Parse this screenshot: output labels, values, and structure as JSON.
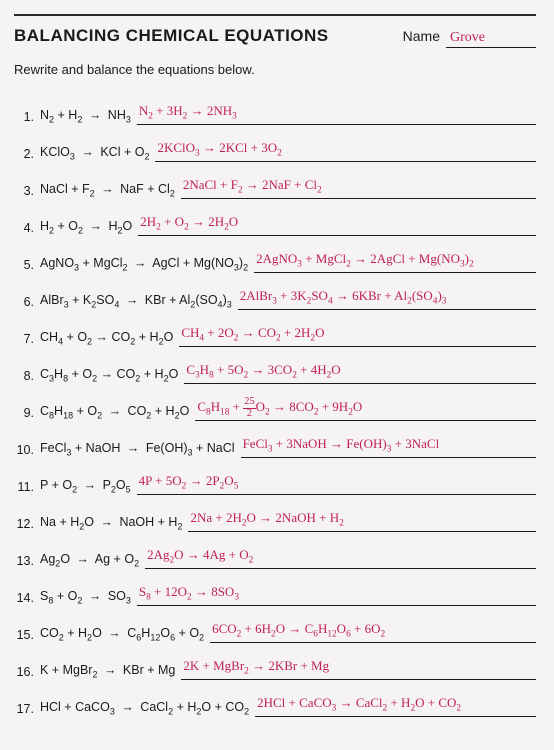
{
  "colors": {
    "paper_bg": "#f5f4f2",
    "print_text": "#1a1a1a",
    "handwriting": "#c0205a",
    "rule_line": "#1a1a1a"
  },
  "typography": {
    "title_fontsize": 17,
    "title_weight": 900,
    "body_fontsize": 12.5,
    "handwriting_font": "Comic Sans MS, cursive",
    "print_font": "Arial, Helvetica, sans-serif"
  },
  "header": {
    "title": "BALANCING CHEMICAL EQUATIONS",
    "name_label": "Name",
    "name_value": "Grove"
  },
  "instructions": "Rewrite and balance the equations below.",
  "problems": [
    {
      "n": "1.",
      "eq": "N<sub>2</sub> + H<sub>2</sub> <span class='arrow'>→</span> NH<sub>3</sub>",
      "ans": "N<sub>2</sub> + 3H<sub>2</sub> → 2NH<sub>3</sub>"
    },
    {
      "n": "2.",
      "eq": "KClO<sub>3</sub> <span class='arrow'>→</span> KCl + O<sub>2</sub>",
      "ans": "2KClO<sub>3</sub> → 2KCl + 3O<sub>2</sub>"
    },
    {
      "n": "3.",
      "eq": "NaCl + F<sub>2</sub> <span class='arrow'>→</span> NaF + Cl<sub>2</sub>",
      "ans": "2NaCl + F<sub>2</sub> → 2NaF + Cl<sub>2</sub>"
    },
    {
      "n": "4.",
      "eq": "H<sub>2</sub> + O<sub>2</sub> <span class='arrow'>→</span> H<sub>2</sub>O",
      "ans": "2H<sub>2</sub> + O<sub>2</sub> → 2H<sub>2</sub>O"
    },
    {
      "n": "5.",
      "eq": "AgNO<sub>3</sub> + MgCl<sub>2</sub> <span class='arrow'>→</span> AgCl + Mg(NO<sub>3</sub>)<sub>2</sub>",
      "ans": "2AgNO<sub>3</sub> + MgCl<sub>2</sub> → 2AgCl + Mg(NO<sub>3</sub>)<sub>2</sub>"
    },
    {
      "n": "6.",
      "eq": "AlBr<sub>3</sub> + K<sub>2</sub>SO<sub>4</sub> <span class='arrow'>→</span> KBr + Al<sub>2</sub>(SO<sub>4</sub>)<sub>3</sub>",
      "ans": "2AlBr<sub>3</sub> + 3K<sub>2</sub>SO<sub>4</sub> → 6KBr + Al<sub>2</sub>(SO<sub>4</sub>)<sub>3</sub>"
    },
    {
      "n": "7.",
      "eq": "CH<sub>4</sub> + O<sub>2</sub> → CO<sub>2</sub> + H<sub>2</sub>O",
      "ans": "CH<sub>4</sub> + 2O<sub>2</sub> → CO<sub>2</sub> + 2H<sub>2</sub>O"
    },
    {
      "n": "8.",
      "eq": "C<sub>3</sub>H<sub>8</sub> + O<sub>2</sub> → CO<sub>2</sub> + H<sub>2</sub>O",
      "ans": "C<sub>3</sub>H<sub>8</sub> + 5O<sub>2</sub> → 3CO<sub>2</sub> + 4H<sub>2</sub>O"
    },
    {
      "n": "9.",
      "eq": "C<sub>8</sub>H<sub>18</sub> + O<sub>2</sub> <span class='arrow'>→</span> CO<sub>2</sub> + H<sub>2</sub>O",
      "ans": "C<sub>8</sub>H<sub>18</sub> + <span class='frac'><span class='t'>25</span><span class='b'>2</span></span>O<sub>2</sub> → 8CO<sub>2</sub> + 9H<sub>2</sub>O"
    },
    {
      "n": "10.",
      "eq": "FeCl<sub>3</sub> + NaOH <span class='arrow'>→</span> Fe(OH)<sub>3</sub> + NaCl",
      "ans": "FeCl<sub>3</sub> + 3NaOH → Fe(OH)<sub>3</sub> + 3NaCl"
    },
    {
      "n": "11.",
      "eq": "P + O<sub>2</sub> <span class='arrow'>→</span> P<sub>2</sub>O<sub>5</sub>",
      "ans": "4P + 5O<sub>2</sub> → 2P<sub>2</sub>O<sub>5</sub>"
    },
    {
      "n": "12.",
      "eq": "Na + H<sub>2</sub>O <span class='arrow'>→</span> NaOH + H<sub>2</sub>",
      "ans": "2Na + 2H<sub>2</sub>O → 2NaOH + H<sub>2</sub>"
    },
    {
      "n": "13.",
      "eq": "Ag<sub>2</sub>O <span class='arrow'>→</span> Ag + O<sub>2</sub>",
      "ans": "2Ag<sub>2</sub>O → 4Ag + O<sub>2</sub>"
    },
    {
      "n": "14.",
      "eq": "S<sub>8</sub> + O<sub>2</sub> <span class='arrow'>→</span> SO<sub>3</sub>",
      "ans": "S<sub>8</sub> + 12O<sub>2</sub> → 8SO<sub>3</sub>"
    },
    {
      "n": "15.",
      "eq": "CO<sub>2</sub> + H<sub>2</sub>O <span class='arrow'>→</span> C<sub>6</sub>H<sub>12</sub>O<sub>6</sub> + O<sub>2</sub>",
      "ans": "6CO<sub>2</sub> + 6H<sub>2</sub>O → C<sub>6</sub>H<sub>12</sub>O<sub>6</sub> + 6O<sub>2</sub>"
    },
    {
      "n": "16.",
      "eq": "K + MgBr<sub>2</sub> <span class='arrow'>→</span> KBr + Mg",
      "ans": "2K + MgBr<sub>2</sub> → 2KBr + Mg"
    },
    {
      "n": "17.",
      "eq": "HCl + CaCO<sub>3</sub> <span class='arrow'>→</span> CaCl<sub>2</sub> + H<sub>2</sub>O + CO<sub>2</sub>",
      "ans": "2HCl + CaCO<sub>3</sub> → CaCl<sub>2</sub> + H<sub>2</sub>O + CO<sub>2</sub>"
    }
  ]
}
